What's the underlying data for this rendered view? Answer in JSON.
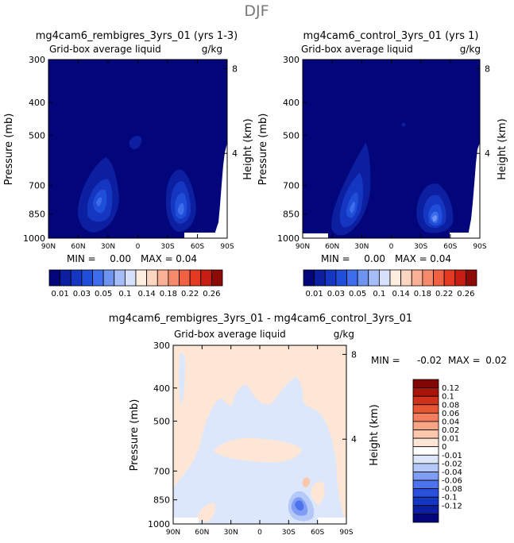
{
  "page_title": "DJF",
  "colors": {
    "seq_levels": [
      "#03067a",
      "#0b1fa0",
      "#1436c0",
      "#1f4ed8",
      "#3d6cec",
      "#6e94f2",
      "#a5bdf7",
      "#d5e1fb",
      "#fdeee0",
      "#fcd6c0",
      "#f9b095",
      "#f68a6b",
      "#f06143",
      "#e43a22",
      "#c61f12",
      "#8c0a07"
    ],
    "div_levels": [
      "#03067a",
      "#0b1fa0",
      "#1436c0",
      "#2a50dc",
      "#4d72ee",
      "#7f9df4",
      "#b4c9f8",
      "#dde7fc",
      "#ffffff",
      "#fde6d6",
      "#fbc8ae",
      "#f8a585",
      "#f27e5c",
      "#e65632",
      "#d2321a",
      "#a9140b",
      "#800705"
    ]
  },
  "chart_data": [
    {
      "type": "heatmap",
      "title": "mg4cam6_rembigres_3yrs_01 (yrs 1-3)",
      "subtitle": "Grid-box average liquid",
      "units": "g/kg",
      "ylabel": "Pressure (mb)",
      "ylabel_right": "Height (km)",
      "x_ticks": [
        "90N",
        "60N",
        "30N",
        "0",
        "30S",
        "60S",
        "90S"
      ],
      "y_ticks": [
        300,
        400,
        500,
        700,
        850,
        1000
      ],
      "height_ticks": [
        8,
        4
      ],
      "min_label": "MIN =",
      "min_value": "0.00",
      "max_label": "MAX =",
      "max_value": "0.04"
    },
    {
      "type": "heatmap",
      "title": "mg4cam6_control_3yrs_01 (yrs 1)",
      "subtitle": "Grid-box average liquid",
      "units": "g/kg",
      "ylabel": "Pressure (mb)",
      "ylabel_right": "Height (km)",
      "x_ticks": [
        "90N",
        "60N",
        "30N",
        "0",
        "30S",
        "60S",
        "90S"
      ],
      "y_ticks": [
        300,
        400,
        500,
        700,
        850,
        1000
      ],
      "height_ticks": [
        8,
        4
      ],
      "min_label": "MIN =",
      "min_value": "0.00",
      "max_label": "MAX =",
      "max_value": "0.04"
    },
    {
      "type": "heatmap",
      "title": "mg4cam6_rembigres_3yrs_01 - mg4cam6_control_3yrs_01",
      "subtitle": "Grid-box average liquid",
      "units": "g/kg",
      "ylabel": "Pressure (mb)",
      "ylabel_right": "Height (km)",
      "x_ticks": [
        "90N",
        "60N",
        "30N",
        "0",
        "30S",
        "60S",
        "90S"
      ],
      "y_ticks": [
        300,
        400,
        500,
        700,
        850,
        1000
      ],
      "height_ticks": [
        8,
        4
      ],
      "min_label": "MIN =",
      "min_value": "-0.02",
      "max_label": "MAX =",
      "max_value": "0.02"
    }
  ],
  "colorbar_seq": {
    "labels": [
      "0.01",
      "0.03",
      "0.05",
      "0.1",
      "0.14",
      "0.18",
      "0.22",
      "0.26"
    ]
  },
  "colorbar_div": {
    "labels": [
      "0.12",
      "0.1",
      "0.08",
      "0.06",
      "0.04",
      "0.02",
      "0.01",
      "0",
      "-0.01",
      "-0.02",
      "-0.04",
      "-0.06",
      "-0.08",
      "-0.1",
      "-0.12"
    ]
  }
}
